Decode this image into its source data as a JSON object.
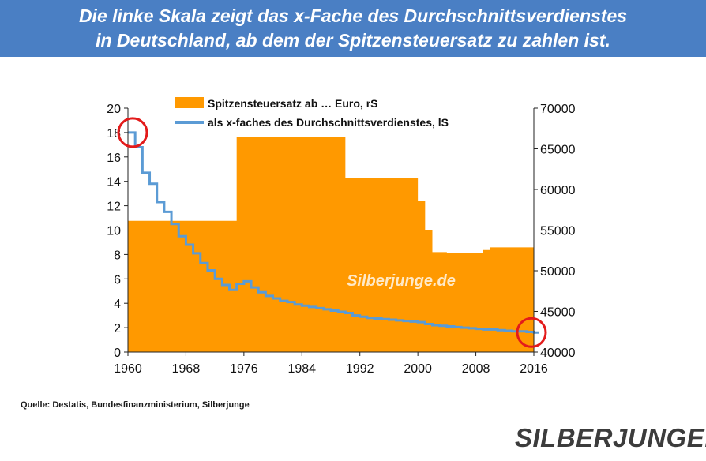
{
  "title_lines": [
    "Die linke Skala zeigt das x-Fache des Durchschnittsverdienstes",
    "in Deutschland, ab dem der Spitzensteuersatz zu zahlen ist."
  ],
  "source": "Quelle: Destatis,  Bundesfinanzministerium,  Silberjunge",
  "logo": "SILBERJUNGE.",
  "colors": {
    "banner": "#4a7fc4",
    "area": "#ff9900",
    "line": "#5b9bd5",
    "marker": "#e31b1b",
    "watermark": "#ffe9c7"
  },
  "chart_data": {
    "type": "area",
    "watermark": "Silberjunge.de",
    "legend_position": "top",
    "legend": [
      "Spitzensteuersatz ab … Euro, rS",
      "als x-faches des Durchschnittsverdienstes,  lS"
    ],
    "x_ticks": [
      "1960",
      "1968",
      "1976",
      "1984",
      "1992",
      "2000",
      "2008",
      "2016"
    ],
    "xlim": [
      1960,
      2016
    ],
    "y_left_ticks": [
      "0",
      "2",
      "4",
      "6",
      "8",
      "10",
      "12",
      "14",
      "16",
      "18",
      "20"
    ],
    "y_left_lim": [
      0,
      20
    ],
    "y_right_ticks": [
      "40000",
      "45000",
      "50000",
      "55000",
      "60000",
      "65000",
      "70000"
    ],
    "y_right_lim": [
      40000,
      70000
    ],
    "series": [
      {
        "name": "Spitzensteuersatz ab … Euro, rS",
        "axis": "right",
        "style": "area-step",
        "x": [
          1960,
          1975,
          1990,
          2000,
          2001,
          2002,
          2004,
          2009,
          2010,
          2016,
          2017
        ],
        "y": [
          56140,
          66480,
          61377,
          58643,
          55007,
          52293,
          52152,
          52552,
          52882,
          53666,
          53666
        ]
      },
      {
        "name": "als x-faches des Durchschnittsverdienstes,  lS",
        "axis": "left",
        "style": "step-line",
        "x": [
          1960,
          1961,
          1962,
          1963,
          1964,
          1965,
          1966,
          1967,
          1968,
          1969,
          1970,
          1971,
          1972,
          1973,
          1974,
          1975,
          1976,
          1977,
          1978,
          1979,
          1980,
          1981,
          1982,
          1983,
          1984,
          1985,
          1986,
          1987,
          1988,
          1989,
          1990,
          1991,
          1992,
          1993,
          1994,
          1995,
          1996,
          1997,
          1998,
          1999,
          2000,
          2001,
          2002,
          2003,
          2004,
          2005,
          2006,
          2007,
          2008,
          2009,
          2010,
          2011,
          2012,
          2013,
          2014,
          2015,
          2016
        ],
        "y": [
          18.0,
          16.8,
          14.7,
          13.8,
          12.3,
          11.5,
          10.5,
          9.5,
          8.8,
          8.1,
          7.3,
          6.7,
          6.0,
          5.5,
          5.1,
          5.6,
          5.8,
          5.3,
          4.9,
          4.6,
          4.4,
          4.2,
          4.1,
          3.9,
          3.8,
          3.7,
          3.6,
          3.5,
          3.4,
          3.3,
          3.2,
          3.0,
          2.9,
          2.8,
          2.75,
          2.7,
          2.65,
          2.6,
          2.55,
          2.5,
          2.45,
          2.3,
          2.2,
          2.15,
          2.1,
          2.05,
          2.0,
          1.95,
          1.9,
          1.85,
          1.85,
          1.8,
          1.75,
          1.7,
          1.7,
          1.65,
          1.6
        ]
      }
    ],
    "highlight_circles_at_years": [
      1960,
      2016
    ]
  }
}
